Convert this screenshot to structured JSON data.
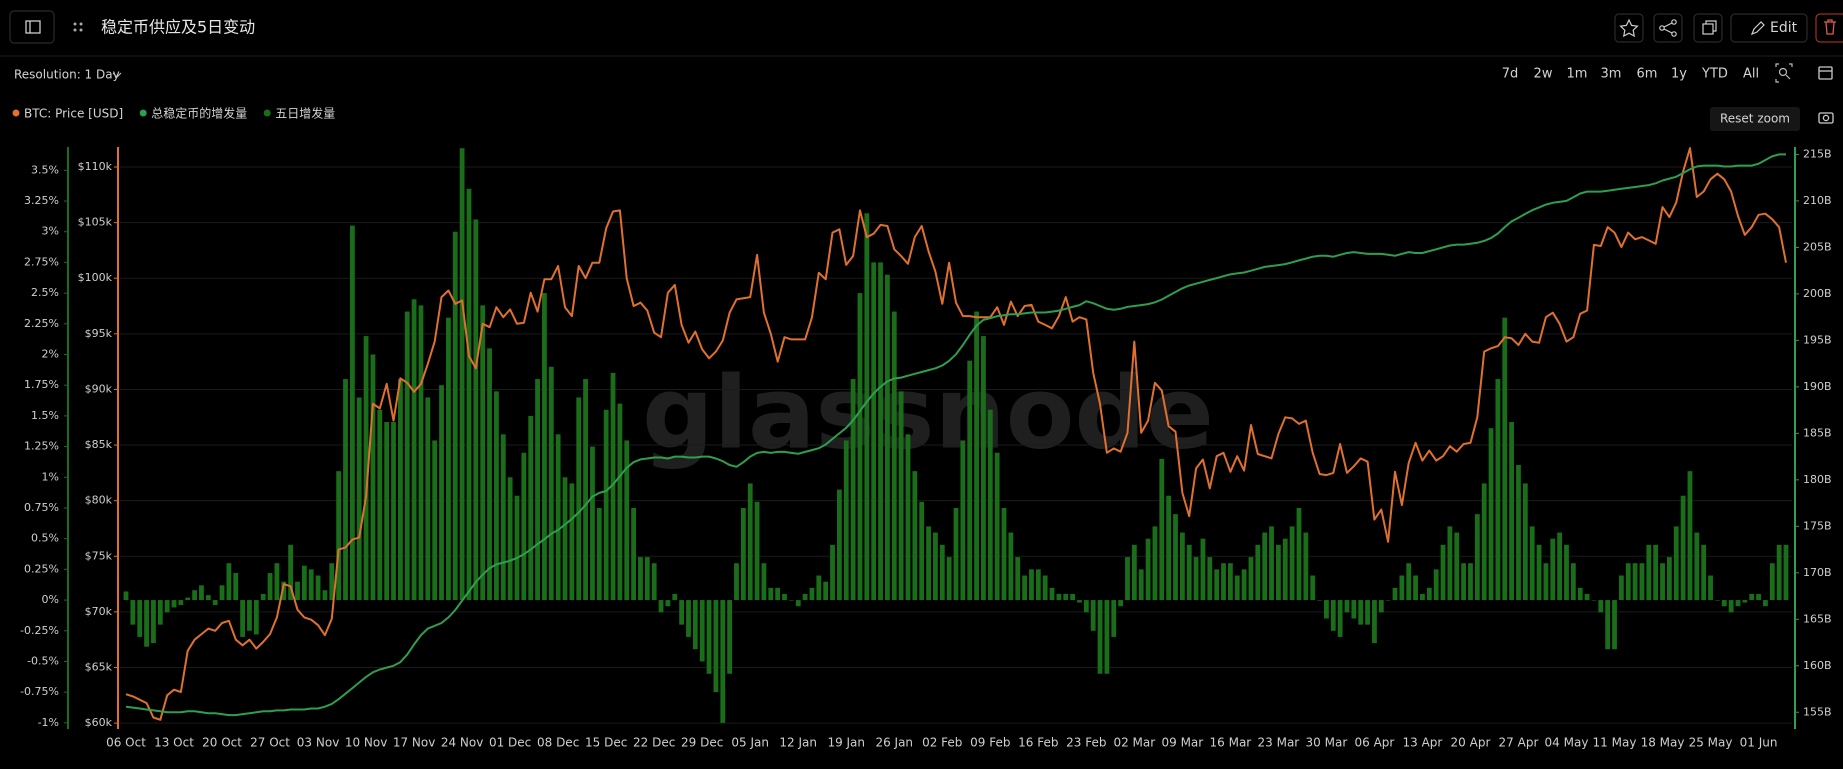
{
  "ui": {
    "resolution": "Resolution: 1 Day",
    "edit": "Edit",
    "reset_zoom": "Reset zoom",
    "watermark": "glassnode",
    "ranges": [
      "7d",
      "2w",
      "1m",
      "3m",
      "6m",
      "1y",
      "YTD",
      "All"
    ]
  },
  "chart_data": {
    "type": "combo",
    "title": "稳定币供应及5日变动",
    "grid": true,
    "categories": [
      "06 Oct",
      null,
      null,
      null,
      null,
      null,
      null,
      "13 Oct",
      null,
      null,
      null,
      null,
      null,
      null,
      "20 Oct",
      null,
      null,
      null,
      null,
      null,
      null,
      "27 Oct",
      null,
      null,
      null,
      null,
      null,
      null,
      "03 Nov",
      null,
      null,
      null,
      null,
      null,
      null,
      "10 Nov",
      null,
      null,
      null,
      null,
      null,
      null,
      "17 Nov",
      null,
      null,
      null,
      null,
      null,
      null,
      "24 Nov",
      null,
      null,
      null,
      null,
      null,
      null,
      "01 Dec",
      null,
      null,
      null,
      null,
      null,
      null,
      "08 Dec",
      null,
      null,
      null,
      null,
      null,
      null,
      "15 Dec",
      null,
      null,
      null,
      null,
      null,
      null,
      "22 Dec",
      null,
      null,
      null,
      null,
      null,
      null,
      "29 Dec",
      null,
      null,
      null,
      null,
      null,
      null,
      "05 Jan",
      null,
      null,
      null,
      null,
      null,
      null,
      "12 Jan",
      null,
      null,
      null,
      null,
      null,
      null,
      "19 Jan",
      null,
      null,
      null,
      null,
      null,
      null,
      "26 Jan",
      null,
      null,
      null,
      null,
      null,
      null,
      "02 Feb",
      null,
      null,
      null,
      null,
      null,
      null,
      "09 Feb",
      null,
      null,
      null,
      null,
      null,
      null,
      "16 Feb",
      null,
      null,
      null,
      null,
      null,
      null,
      "23 Feb",
      null,
      null,
      null,
      null,
      null,
      null,
      "02 Mar",
      null,
      null,
      null,
      null,
      null,
      null,
      "09 Mar",
      null,
      null,
      null,
      null,
      null,
      null,
      "16 Mar",
      null,
      null,
      null,
      null,
      null,
      null,
      "23 Mar",
      null,
      null,
      null,
      null,
      null,
      null,
      "30 Mar",
      null,
      null,
      null,
      null,
      null,
      null,
      "06 Apr",
      null,
      null,
      null,
      null,
      null,
      null,
      "13 Apr",
      null,
      null,
      null,
      null,
      null,
      null,
      "20 Apr",
      null,
      null,
      null,
      null,
      null,
      null,
      "27 Apr",
      null,
      null,
      null,
      null,
      null,
      null,
      "04 May",
      null,
      null,
      null,
      null,
      null,
      null,
      "11 May",
      null,
      null,
      null,
      null,
      null,
      null,
      "18 May",
      null,
      null,
      null,
      null,
      null,
      null,
      "25 May",
      null,
      null,
      null,
      null,
      null,
      null,
      "01 Jun",
      null,
      null,
      null,
      null
    ],
    "ylim": [
      59470,
      111800
    ],
    "yticks": [
      {
        "value": 60000,
        "label": "$60k"
      },
      {
        "value": 65000,
        "label": "$65k"
      },
      {
        "value": 70000,
        "label": "$70k"
      },
      {
        "value": 75000,
        "label": "$75k"
      },
      {
        "value": 80000,
        "label": "$80k"
      },
      {
        "value": 85000,
        "label": "$85k"
      },
      {
        "value": 90000,
        "label": "$90k"
      },
      {
        "value": 95000,
        "label": "$95k"
      },
      {
        "value": 100000,
        "label": "$100k"
      },
      {
        "value": 105000,
        "label": "$105k"
      },
      {
        "value": 110000,
        "label": "$110k"
      }
    ],
    "y2lim": [
      153.2,
      215.8
    ],
    "y2ticks": [
      {
        "value": 155,
        "label": "155B"
      },
      {
        "value": 160,
        "label": "160B"
      },
      {
        "value": 165,
        "label": "165B"
      },
      {
        "value": 170,
        "label": "170B"
      },
      {
        "value": 175,
        "label": "175B"
      },
      {
        "value": 180,
        "label": "180B"
      },
      {
        "value": 185,
        "label": "185B"
      },
      {
        "value": 190,
        "label": "190B"
      },
      {
        "value": 195,
        "label": "195B"
      },
      {
        "value": 200,
        "label": "200B"
      },
      {
        "value": 205,
        "label": "205B"
      },
      {
        "value": 210,
        "label": "210B"
      },
      {
        "value": 215,
        "label": "215B"
      }
    ],
    "y3lim": [
      -1.05,
      3.69
    ],
    "y3ticks": [
      {
        "value": -1,
        "label": "-1%"
      },
      {
        "value": -0.75,
        "label": "-0.75%"
      },
      {
        "value": -0.5,
        "label": "-0.5%"
      },
      {
        "value": -0.25,
        "label": "-0.25%"
      },
      {
        "value": 0,
        "label": "0%"
      },
      {
        "value": 0.25,
        "label": "0.25%"
      },
      {
        "value": 0.5,
        "label": "0.5%"
      },
      {
        "value": 0.75,
        "label": "0.75%"
      },
      {
        "value": 1,
        "label": "1%"
      },
      {
        "value": 1.25,
        "label": "1.25%"
      },
      {
        "value": 1.5,
        "label": "1.5%"
      },
      {
        "value": 1.75,
        "label": "1.75%"
      },
      {
        "value": 2,
        "label": "2%"
      },
      {
        "value": 2.25,
        "label": "2.25%"
      },
      {
        "value": 2.5,
        "label": "2.5%"
      },
      {
        "value": 2.75,
        "label": "2.75%"
      },
      {
        "value": 3,
        "label": "3%"
      },
      {
        "value": 3.25,
        "label": "3.25%"
      },
      {
        "value": 3.5,
        "label": "3.5%"
      }
    ],
    "series": [
      {
        "name": "BTC: Price [USD]",
        "color": "#e0702f",
        "kind": "line",
        "axis": "y",
        "values": [
          62600,
          62400,
          62100,
          61800,
          60500,
          60300,
          62500,
          63000,
          62800,
          66500,
          67500,
          68000,
          68500,
          68300,
          69000,
          69200,
          67500,
          67000,
          67500,
          66700,
          67300,
          68000,
          69500,
          72500,
          72300,
          70200,
          69500,
          69300,
          68800,
          67900,
          69400,
          75600,
          75800,
          76500,
          76700,
          80400,
          88700,
          88300,
          90500,
          87200,
          91000,
          90600,
          89800,
          90500,
          92300,
          94300,
          98300,
          98900,
          97700,
          98000,
          93000,
          91900,
          95900,
          95600,
          97400,
          96500,
          97200,
          95900,
          96000,
          98700,
          97000,
          99900,
          99900,
          101100,
          97400,
          96600,
          101100,
          100000,
          101400,
          101400,
          104500,
          106000,
          106100,
          100000,
          97500,
          97800,
          97100,
          95100,
          94700,
          98700,
          99400,
          95800,
          94200,
          95200,
          93600,
          92800,
          93400,
          94400,
          96900,
          98100,
          98200,
          98300,
          102100,
          96900,
          95000,
          92500,
          94700,
          94500,
          94500,
          94500,
          96500,
          100500,
          99900,
          104100,
          104400,
          101200,
          102000,
          106100,
          103700,
          104000,
          104800,
          104700,
          102600,
          102000,
          101300,
          103700,
          104700,
          102400,
          100600,
          97700,
          101400,
          97800,
          96600,
          96600,
          96500,
          96500,
          96500,
          97400,
          95800,
          97900,
          96600,
          97500,
          97600,
          96100,
          95800,
          95500,
          96600,
          98300,
          96100,
          96500,
          96300,
          91500,
          88700,
          84300,
          84700,
          84400,
          86100,
          94300,
          86100,
          87200,
          90600,
          89900,
          86700,
          86200,
          80700,
          78600,
          82900,
          83700,
          81100,
          84000,
          84300,
          82600,
          84000,
          82700,
          86800,
          84200,
          84000,
          83800,
          86000,
          87500,
          87400,
          86900,
          87200,
          84300,
          82400,
          82300,
          82500,
          85100,
          82500,
          83100,
          83800,
          83500,
          78300,
          79200,
          76300,
          82600,
          79600,
          83400,
          85200,
          83600,
          84500,
          83600,
          84000,
          84900,
          84400,
          85100,
          85200,
          87500,
          93400,
          93700,
          93900,
          94700,
          94600,
          94000,
          95000,
          94300,
          94200,
          96500,
          96900,
          95900,
          94300,
          94700,
          96800,
          97100,
          103000,
          102900,
          104600,
          104100,
          102800,
          104100,
          103500,
          103700,
          103400,
          103100,
          106400,
          105500,
          106800,
          109600,
          111700,
          107300,
          107800,
          108900,
          109400,
          108900,
          107800,
          105600,
          103900,
          104600,
          105700,
          105800,
          105300,
          104600,
          101400
        ]
      },
      {
        "name": "总稳定币的增发量",
        "color": "#2f9e4e",
        "kind": "line",
        "axis": "y2",
        "values": [
          155.6,
          155.5,
          155.4,
          155.3,
          155.2,
          155.1,
          155.0,
          155.0,
          155.0,
          155.1,
          155.1,
          155.0,
          154.9,
          154.9,
          154.8,
          154.7,
          154.7,
          154.8,
          154.9,
          155.0,
          155.1,
          155.1,
          155.2,
          155.2,
          155.3,
          155.3,
          155.3,
          155.4,
          155.4,
          155.6,
          155.9,
          156.4,
          157.0,
          157.6,
          158.2,
          158.8,
          159.3,
          159.6,
          159.8,
          160.0,
          160.4,
          161.2,
          162.3,
          163.3,
          164.0,
          164.3,
          164.6,
          165.2,
          166.0,
          167.0,
          168.0,
          169.0,
          169.8,
          170.5,
          170.9,
          171.1,
          171.3,
          171.6,
          172.0,
          172.5,
          173.1,
          173.6,
          174.2,
          174.6,
          175.2,
          175.8,
          176.5,
          177.3,
          178.2,
          178.6,
          178.8,
          179.5,
          180.4,
          181.3,
          181.9,
          182.2,
          182.3,
          182.4,
          182.4,
          182.3,
          182.5,
          182.5,
          182.4,
          182.4,
          182.5,
          182.5,
          182.3,
          182.0,
          181.6,
          181.4,
          181.9,
          182.5,
          182.9,
          183.0,
          182.9,
          183.0,
          183.0,
          182.9,
          182.8,
          183.0,
          183.2,
          183.4,
          183.8,
          184.4,
          185.0,
          185.6,
          186.4,
          187.4,
          188.4,
          189.3,
          190.0,
          190.6,
          190.9,
          191.0,
          191.2,
          191.4,
          191.6,
          191.8,
          192.0,
          192.3,
          192.8,
          193.5,
          194.5,
          195.6,
          196.6,
          197.2,
          197.4,
          197.6,
          197.7,
          197.8,
          197.8,
          197.9,
          198.0,
          198.0,
          198.0,
          198.1,
          198.2,
          198.4,
          198.6,
          198.8,
          199.2,
          199.0,
          198.7,
          198.4,
          198.3,
          198.4,
          198.6,
          198.7,
          198.8,
          198.9,
          199.1,
          199.4,
          199.8,
          200.2,
          200.6,
          200.9,
          201.1,
          201.3,
          201.5,
          201.7,
          201.9,
          202.1,
          202.2,
          202.3,
          202.5,
          202.7,
          202.9,
          203.0,
          203.1,
          203.2,
          203.4,
          203.6,
          203.8,
          204.0,
          204.1,
          204.1,
          204.0,
          204.2,
          204.4,
          204.5,
          204.4,
          204.3,
          204.3,
          204.3,
          204.2,
          204.1,
          204.3,
          204.5,
          204.4,
          204.4,
          204.6,
          204.8,
          205.0,
          205.2,
          205.3,
          205.3,
          205.4,
          205.5,
          205.7,
          206.0,
          206.5,
          207.2,
          207.8,
          208.2,
          208.6,
          209.0,
          209.3,
          209.6,
          209.8,
          209.9,
          210.0,
          210.4,
          210.8,
          211.0,
          211.0,
          211.0,
          211.1,
          211.2,
          211.3,
          211.4,
          211.5,
          211.6,
          211.7,
          211.9,
          212.2,
          212.4,
          212.6,
          213.0,
          213.4,
          213.7,
          213.8,
          213.8,
          213.8,
          213.7,
          213.7,
          213.8,
          213.8,
          213.8,
          214.0,
          214.4,
          214.8,
          215.0,
          215.0
        ]
      },
      {
        "name": "五日增发量",
        "color": "#1a6e1a",
        "kind": "bar",
        "axis": "y3",
        "values": [
          0.07,
          -0.2,
          -0.3,
          -0.38,
          -0.35,
          -0.2,
          -0.1,
          -0.06,
          -0.04,
          0.02,
          0.08,
          0.12,
          0.04,
          -0.04,
          0.12,
          0.3,
          0.22,
          -0.3,
          -0.25,
          -0.28,
          0.05,
          0.22,
          0.3,
          0.15,
          0.45,
          0.15,
          0.28,
          0.25,
          0.2,
          0.08,
          0.3,
          1.05,
          1.8,
          3.05,
          1.65,
          2.15,
          2.0,
          1.55,
          1.45,
          1.45,
          1.8,
          2.35,
          2.45,
          2.4,
          1.65,
          1.3,
          1.75,
          2.3,
          3.0,
          3.68,
          3.35,
          3.1,
          2.4,
          2.05,
          1.7,
          1.35,
          1.0,
          0.85,
          1.2,
          1.5,
          1.8,
          2.5,
          1.9,
          1.35,
          1.0,
          0.95,
          1.65,
          1.8,
          1.25,
          0.75,
          1.55,
          1.85,
          1.6,
          1.3,
          0.75,
          0.35,
          0.35,
          0.3,
          -0.1,
          -0.05,
          0.05,
          -0.2,
          -0.3,
          -0.4,
          -0.5,
          -0.6,
          -0.75,
          -1.0,
          -0.6,
          0.3,
          0.75,
          0.95,
          0.8,
          0.3,
          0.1,
          0.1,
          0.05,
          0.0,
          -0.05,
          0.05,
          0.1,
          0.2,
          0.15,
          0.45,
          0.9,
          1.3,
          1.8,
          2.5,
          3.15,
          2.75,
          2.75,
          2.65,
          2.35,
          1.7,
          1.35,
          1.05,
          0.8,
          0.6,
          0.55,
          0.45,
          0.35,
          0.75,
          1.3,
          1.95,
          2.35,
          2.15,
          1.55,
          1.2,
          0.75,
          0.55,
          0.35,
          0.2,
          0.25,
          0.25,
          0.2,
          0.1,
          0.05,
          0.05,
          0.05,
          -0.02,
          -0.1,
          -0.25,
          -0.6,
          -0.6,
          -0.3,
          -0.05,
          0.35,
          0.45,
          0.25,
          0.5,
          0.6,
          1.15,
          0.85,
          0.7,
          0.55,
          0.45,
          0.35,
          0.5,
          0.35,
          0.25,
          0.3,
          0.3,
          0.2,
          0.25,
          0.35,
          0.45,
          0.55,
          0.6,
          0.45,
          0.5,
          0.6,
          0.75,
          0.55,
          0.2,
          0.0,
          -0.15,
          -0.25,
          -0.3,
          -0.1,
          -0.15,
          -0.2,
          -0.2,
          -0.35,
          -0.1,
          0.0,
          0.1,
          0.2,
          0.3,
          0.2,
          0.05,
          0.1,
          0.25,
          0.45,
          0.6,
          0.55,
          0.3,
          0.3,
          0.7,
          0.95,
          1.4,
          1.8,
          2.3,
          1.45,
          1.1,
          0.95,
          0.6,
          0.45,
          0.3,
          0.5,
          0.55,
          0.45,
          0.3,
          0.1,
          0.05,
          0.0,
          -0.1,
          -0.4,
          -0.4,
          0.2,
          0.3,
          0.3,
          0.3,
          0.45,
          0.45,
          0.3,
          0.35,
          0.6,
          0.85,
          1.05,
          0.55,
          0.45,
          0.2,
          0.0,
          -0.05,
          -0.1,
          -0.05,
          -0.02,
          0.05,
          0.05,
          -0.05,
          0.3,
          0.45,
          0.45
        ]
      }
    ]
  }
}
